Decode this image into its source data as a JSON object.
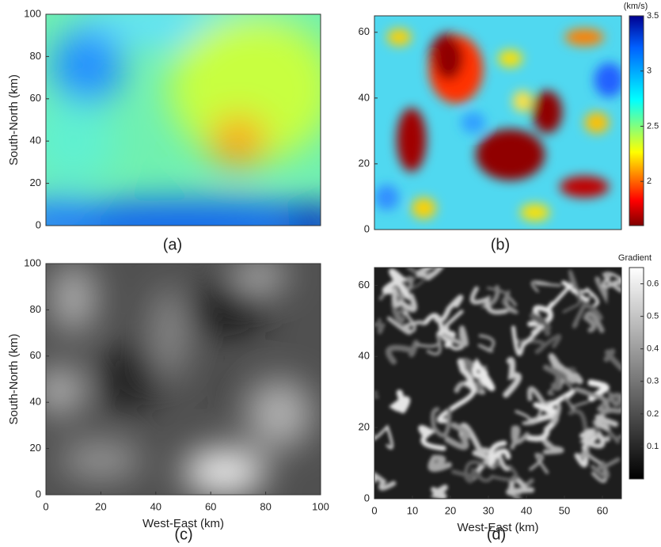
{
  "chart_data": [
    {
      "type": "heatmap",
      "colormap": "jet",
      "caption": "(a)",
      "ylabel": "South-North (km)",
      "xlim": [
        0,
        100
      ],
      "ylim": [
        0,
        100
      ],
      "yticks": [
        0,
        20,
        40,
        60,
        80,
        100
      ]
    },
    {
      "type": "heatmap",
      "colormap": "jet-reversed",
      "caption": "(b)",
      "xlim": [
        0,
        65
      ],
      "ylim": [
        0,
        65
      ],
      "yticks": [
        0,
        20,
        40,
        60
      ],
      "colorbar": {
        "label": "(km/s)",
        "clim": [
          1.6,
          3.5
        ],
        "ticks": [
          2,
          2.5,
          3,
          3.5
        ]
      }
    },
    {
      "type": "heatmap",
      "colormap": "gray",
      "caption": "(c)",
      "ylabel": "South-North (km)",
      "xlabel": "West-East (km)",
      "xlim": [
        0,
        100
      ],
      "ylim": [
        0,
        100
      ],
      "xticks": [
        0,
        20,
        40,
        60,
        80,
        100
      ],
      "yticks": [
        0,
        20,
        40,
        60,
        80,
        100
      ]
    },
    {
      "type": "heatmap",
      "colormap": "gray",
      "caption": "(d)",
      "xlabel": "West-East (km)",
      "xlim": [
        0,
        65
      ],
      "ylim": [
        0,
        65
      ],
      "xticks": [
        0,
        10,
        20,
        30,
        40,
        50,
        60
      ],
      "yticks": [
        0,
        20,
        40,
        60
      ],
      "colorbar": {
        "label": "Gradient",
        "clim": [
          0,
          0.65
        ],
        "ticks": [
          0.1,
          0.2,
          0.3,
          0.4,
          0.5,
          0.6
        ]
      }
    }
  ]
}
